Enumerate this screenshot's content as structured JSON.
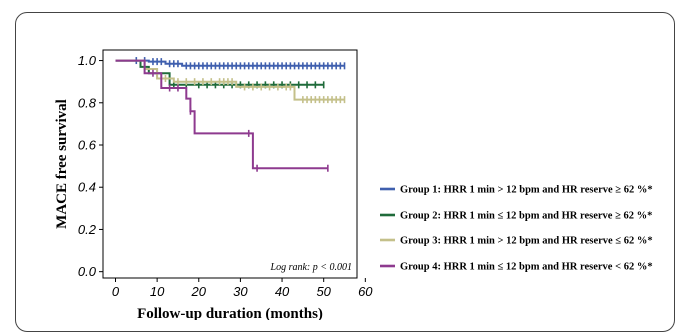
{
  "chart_data": {
    "type": "line",
    "subtype": "kaplan-meier",
    "xlabel": "Follow-up duration (months)",
    "ylabel": "MACE free survival",
    "xlim": [
      -3,
      58
    ],
    "ylim": [
      -0.03,
      1.05
    ],
    "x_ticks": [
      "0",
      "10",
      "20",
      "30",
      "40",
      "50",
      "60"
    ],
    "y_ticks": [
      "0.0",
      "0.2",
      "0.4",
      "0.6",
      "0.8",
      "1.0"
    ],
    "annotation": "Log rank: p < 0.001",
    "legend_position": "right",
    "series": [
      {
        "name": "Group 1: HRR 1 min > 12 bpm and HR reserve ≥ 62 %*",
        "color": "#3f5fae",
        "steps": [
          [
            0,
            1.0
          ],
          [
            8,
            1.0
          ],
          [
            8,
            0.995
          ],
          [
            12,
            0.995
          ],
          [
            12,
            0.985
          ],
          [
            16,
            0.985
          ],
          [
            16,
            0.975
          ],
          [
            55,
            0.975
          ]
        ],
        "censor_x": [
          5,
          7,
          9,
          10,
          11,
          13,
          14,
          15,
          17,
          18,
          19,
          20,
          21,
          22,
          23,
          24,
          25,
          26,
          27,
          28,
          29,
          30,
          31,
          32,
          33,
          34,
          35,
          36,
          37,
          38,
          39,
          40,
          41,
          42,
          43,
          44,
          45,
          46,
          47,
          48,
          49,
          50,
          51,
          52,
          53,
          54,
          55
        ]
      },
      {
        "name": "Group 2: HRR 1 min ≤ 12 bpm and HR reserve ≥ 62 %*",
        "color": "#1f6b3a",
        "steps": [
          [
            0,
            1.0
          ],
          [
            6,
            1.0
          ],
          [
            6,
            0.97
          ],
          [
            8,
            0.97
          ],
          [
            8,
            0.94
          ],
          [
            13,
            0.94
          ],
          [
            13,
            0.885
          ],
          [
            50,
            0.885
          ]
        ],
        "censor_x": [
          10,
          14,
          17,
          20,
          22,
          24,
          26,
          28,
          30,
          32,
          34,
          36,
          38,
          40,
          42,
          44,
          46,
          48,
          50
        ]
      },
      {
        "name": "Group 3: HRR 1 min > 12 bpm and HR reserve ≤ 62 %*",
        "color": "#c4c08a",
        "steps": [
          [
            0,
            1.0
          ],
          [
            7,
            1.0
          ],
          [
            7,
            0.96
          ],
          [
            10,
            0.96
          ],
          [
            10,
            0.915
          ],
          [
            14,
            0.915
          ],
          [
            14,
            0.9
          ],
          [
            29,
            0.9
          ],
          [
            29,
            0.875
          ],
          [
            43,
            0.875
          ],
          [
            43,
            0.815
          ],
          [
            55,
            0.815
          ]
        ],
        "censor_x": [
          12,
          15,
          17,
          19,
          21,
          23,
          25,
          26,
          27,
          28,
          31,
          33,
          35,
          37,
          39,
          41,
          42,
          45,
          46,
          47,
          48,
          49,
          50,
          51,
          52,
          53,
          54,
          55
        ]
      },
      {
        "name": "Group 4: HRR 1 min ≤ 12 bpm and HR reserve < 62 %*",
        "color": "#8e3a8f",
        "steps": [
          [
            0,
            1.0
          ],
          [
            7,
            1.0
          ],
          [
            7,
            0.94
          ],
          [
            11,
            0.94
          ],
          [
            11,
            0.87
          ],
          [
            17,
            0.87
          ],
          [
            17,
            0.82
          ],
          [
            18,
            0.82
          ],
          [
            18,
            0.76
          ],
          [
            19,
            0.76
          ],
          [
            19,
            0.655
          ],
          [
            33,
            0.655
          ],
          [
            33,
            0.49
          ],
          [
            51,
            0.49
          ]
        ],
        "censor_x": [
          9,
          13,
          15,
          18,
          32,
          34,
          51
        ]
      }
    ]
  }
}
